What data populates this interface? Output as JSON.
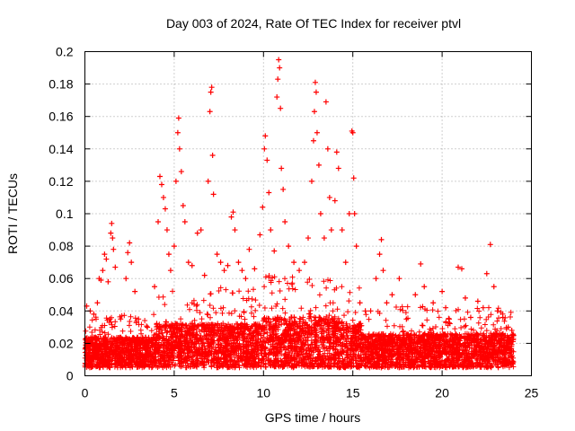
{
  "chart_data": {
    "type": "scatter",
    "title": "Day 003 of 2024, Rate Of TEC Index for receiver ptvl",
    "xlabel": "GPS time / hours",
    "ylabel": "ROTI / TECUs",
    "xlim": [
      0,
      25
    ],
    "ylim": [
      0,
      0.2
    ],
    "x_ticks": [
      "0",
      "5",
      "10",
      "15",
      "20",
      "25"
    ],
    "y_ticks": [
      "0",
      "0.02",
      "0.04",
      "0.06",
      "0.08",
      "0.1",
      "0.12",
      "0.14",
      "0.16",
      "0.18",
      "0.2"
    ],
    "x_tick_values": [
      0,
      5,
      10,
      15,
      20,
      25
    ],
    "y_tick_values": [
      0,
      0.02,
      0.04,
      0.06,
      0.08,
      0.1,
      0.12,
      0.14,
      0.16,
      0.18,
      0.2
    ],
    "grid": true,
    "marker": "+",
    "series": [
      {
        "name": "ROTI",
        "color": "#ff0000",
        "points": [
          [
            0.1,
            0.043
          ],
          [
            0.3,
            0.04
          ],
          [
            0.5,
            0.038
          ],
          [
            0.7,
            0.045
          ],
          [
            0.8,
            0.06
          ],
          [
            0.9,
            0.059
          ],
          [
            1.0,
            0.065
          ],
          [
            1.1,
            0.075
          ],
          [
            1.2,
            0.072
          ],
          [
            1.3,
            0.058
          ],
          [
            1.45,
            0.088
          ],
          [
            1.5,
            0.094
          ],
          [
            1.55,
            0.085
          ],
          [
            1.6,
            0.078
          ],
          [
            1.7,
            0.067
          ],
          [
            2.0,
            0.035
          ],
          [
            2.3,
            0.06
          ],
          [
            2.4,
            0.076
          ],
          [
            2.5,
            0.082
          ],
          [
            2.6,
            0.07
          ],
          [
            2.8,
            0.052
          ],
          [
            3.0,
            0.035
          ],
          [
            3.5,
            0.03
          ],
          [
            3.9,
            0.055
          ],
          [
            4.1,
            0.095
          ],
          [
            4.2,
            0.123
          ],
          [
            4.3,
            0.118
          ],
          [
            4.4,
            0.11
          ],
          [
            4.5,
            0.103
          ],
          [
            4.6,
            0.09
          ],
          [
            4.7,
            0.075
          ],
          [
            4.8,
            0.065
          ],
          [
            5.0,
            0.08
          ],
          [
            5.1,
            0.12
          ],
          [
            5.2,
            0.15
          ],
          [
            5.25,
            0.159
          ],
          [
            5.3,
            0.14
          ],
          [
            5.4,
            0.126
          ],
          [
            5.5,
            0.105
          ],
          [
            5.6,
            0.095
          ],
          [
            5.8,
            0.07
          ],
          [
            6.0,
            0.068
          ],
          [
            6.3,
            0.088
          ],
          [
            6.5,
            0.09
          ],
          [
            6.7,
            0.062
          ],
          [
            6.9,
            0.12
          ],
          [
            7.0,
            0.163
          ],
          [
            7.05,
            0.175
          ],
          [
            7.1,
            0.178
          ],
          [
            7.15,
            0.136
          ],
          [
            7.2,
            0.112
          ],
          [
            7.4,
            0.075
          ],
          [
            7.6,
            0.07
          ],
          [
            7.8,
            0.065
          ],
          [
            8.0,
            0.068
          ],
          [
            8.2,
            0.098
          ],
          [
            8.3,
            0.101
          ],
          [
            8.4,
            0.09
          ],
          [
            8.6,
            0.07
          ],
          [
            8.8,
            0.065
          ],
          [
            9.0,
            0.06
          ],
          [
            9.2,
            0.078
          ],
          [
            9.5,
            0.066
          ],
          [
            9.8,
            0.087
          ],
          [
            9.95,
            0.104
          ],
          [
            10.05,
            0.14
          ],
          [
            10.1,
            0.148
          ],
          [
            10.2,
            0.133
          ],
          [
            10.3,
            0.113
          ],
          [
            10.4,
            0.09
          ],
          [
            10.6,
            0.077
          ],
          [
            10.75,
            0.172
          ],
          [
            10.8,
            0.183
          ],
          [
            10.85,
            0.195
          ],
          [
            10.9,
            0.19
          ],
          [
            10.95,
            0.165
          ],
          [
            11.0,
            0.128
          ],
          [
            11.1,
            0.115
          ],
          [
            11.2,
            0.095
          ],
          [
            11.4,
            0.08
          ],
          [
            11.7,
            0.07
          ],
          [
            12.0,
            0.065
          ],
          [
            12.3,
            0.07
          ],
          [
            12.5,
            0.085
          ],
          [
            12.7,
            0.12
          ],
          [
            12.8,
            0.145
          ],
          [
            12.85,
            0.163
          ],
          [
            12.9,
            0.181
          ],
          [
            12.95,
            0.175
          ],
          [
            13.0,
            0.15
          ],
          [
            13.1,
            0.13
          ],
          [
            13.2,
            0.1
          ],
          [
            13.4,
            0.085
          ],
          [
            13.5,
            0.169
          ],
          [
            13.6,
            0.14
          ],
          [
            13.7,
            0.11
          ],
          [
            13.8,
            0.09
          ],
          [
            14.0,
            0.108
          ],
          [
            14.1,
            0.138
          ],
          [
            14.2,
            0.128
          ],
          [
            14.4,
            0.09
          ],
          [
            14.6,
            0.07
          ],
          [
            14.8,
            0.1
          ],
          [
            14.95,
            0.151
          ],
          [
            15.0,
            0.15
          ],
          [
            15.05,
            0.122
          ],
          [
            15.1,
            0.1
          ],
          [
            15.2,
            0.08
          ],
          [
            15.4,
            0.045
          ],
          [
            15.7,
            0.04
          ],
          [
            16.0,
            0.04
          ],
          [
            16.3,
            0.06
          ],
          [
            16.5,
            0.075
          ],
          [
            16.6,
            0.084
          ],
          [
            16.7,
            0.065
          ],
          [
            16.9,
            0.045
          ],
          [
            17.2,
            0.05
          ],
          [
            17.6,
            0.06
          ],
          [
            18.0,
            0.035
          ],
          [
            18.5,
            0.05
          ],
          [
            18.8,
            0.069
          ],
          [
            19.0,
            0.055
          ],
          [
            19.5,
            0.045
          ],
          [
            20.0,
            0.052
          ],
          [
            20.2,
            0.042
          ],
          [
            20.4,
            0.035
          ],
          [
            20.9,
            0.067
          ],
          [
            21.1,
            0.066
          ],
          [
            21.3,
            0.048
          ],
          [
            21.6,
            0.036
          ],
          [
            22.0,
            0.046
          ],
          [
            22.3,
            0.042
          ],
          [
            22.5,
            0.063
          ],
          [
            22.7,
            0.081
          ],
          [
            22.9,
            0.055
          ],
          [
            23.1,
            0.04
          ],
          [
            23.4,
            0.036
          ],
          [
            23.7,
            0.03
          ],
          [
            23.9,
            0.028
          ],
          [
            24.0,
            0.025
          ]
        ]
      }
    ]
  }
}
